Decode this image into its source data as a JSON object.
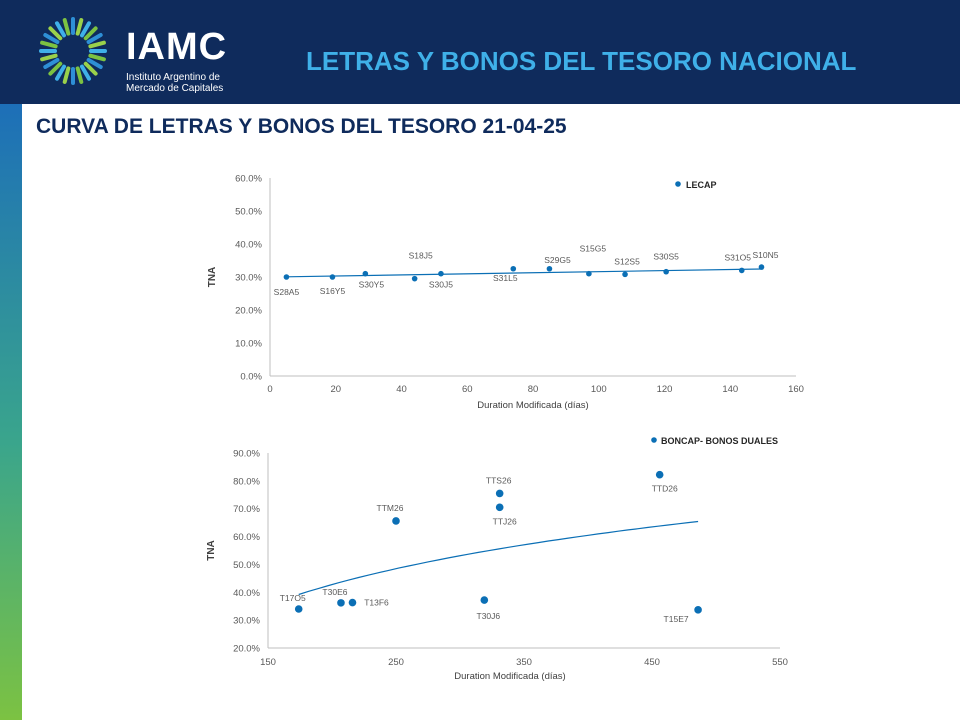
{
  "header": {
    "logo_text": "IAMC",
    "logo_subtitle_line1": "Instituto Argentino de",
    "logo_subtitle_line2": "Mercado de Capitales",
    "title": "LETRAS Y BONOS DEL TESORO NACIONAL"
  },
  "slide": {
    "title": "CURVA DE LETRAS Y BONOS DEL TESORO  21-04-25"
  },
  "colors": {
    "header_bg": "#0f2b5c",
    "accent": "#3fb0e8",
    "series": "#0b6fb5"
  },
  "chart_data": [
    {
      "type": "scatter",
      "legend": "LECAP",
      "xlabel": "Duration Modificada (días)",
      "ylabel": "TNA",
      "xlim": [
        0,
        160
      ],
      "ylim": [
        0,
        60
      ],
      "xticks": [
        "0",
        "20",
        "40",
        "60",
        "80",
        "100",
        "120",
        "140",
        "160"
      ],
      "yticks": [
        "0.0%",
        "10.0%",
        "20.0%",
        "30.0%",
        "40.0%",
        "50.0%",
        "60.0%"
      ],
      "grid": false,
      "trendline": "linear",
      "points": [
        {
          "label": "S28A5",
          "x": 5,
          "y": 30.0
        },
        {
          "label": "S16Y5",
          "x": 19,
          "y": 30.0
        },
        {
          "label": "S30Y5",
          "x": 29,
          "y": 31.0
        },
        {
          "label": "S18J5",
          "x": 44,
          "y": 29.5
        },
        {
          "label": "S30J5",
          "x": 52,
          "y": 31.0
        },
        {
          "label": "S31L5",
          "x": 74,
          "y": 32.5
        },
        {
          "label": "S29G5",
          "x": 85,
          "y": 32.5
        },
        {
          "label": "S15G5",
          "x": 97,
          "y": 31.0
        },
        {
          "label": "S12S5",
          "x": 108,
          "y": 30.8
        },
        {
          "label": "S30S5",
          "x": 120.5,
          "y": 31.6
        },
        {
          "label": "S31O5",
          "x": 143.5,
          "y": 32.0
        },
        {
          "label": "S10N5",
          "x": 149.5,
          "y": 33.0
        }
      ]
    },
    {
      "type": "scatter",
      "legend": "BONCAP- BONOS DUALES",
      "xlabel": "Duration Modificada (días)",
      "ylabel": "TNA",
      "xlim": [
        150,
        550
      ],
      "ylim": [
        20,
        90
      ],
      "xticks": [
        "150",
        "250",
        "350",
        "450",
        "550"
      ],
      "yticks": [
        "20.0%",
        "30.0%",
        "40.0%",
        "50.0%",
        "60.0%",
        "70.0%",
        "80.0%",
        "90.0%"
      ],
      "grid": false,
      "trendline": "logarithmic",
      "points": [
        {
          "label": "T17O5",
          "x": 174,
          "y": 34.0
        },
        {
          "label": "T30E6",
          "x": 207,
          "y": 36.2
        },
        {
          "label": "T13F6",
          "x": 216,
          "y": 36.3
        },
        {
          "label": "TTM26",
          "x": 250,
          "y": 65.6
        },
        {
          "label": "T30J6",
          "x": 319,
          "y": 37.2
        },
        {
          "label": "TTS26",
          "x": 331,
          "y": 75.5
        },
        {
          "label": "TTJ26",
          "x": 331,
          "y": 70.5
        },
        {
          "label": "TTD26",
          "x": 456,
          "y": 82.2
        },
        {
          "label": "T15E7",
          "x": 486,
          "y": 33.7
        }
      ]
    }
  ]
}
